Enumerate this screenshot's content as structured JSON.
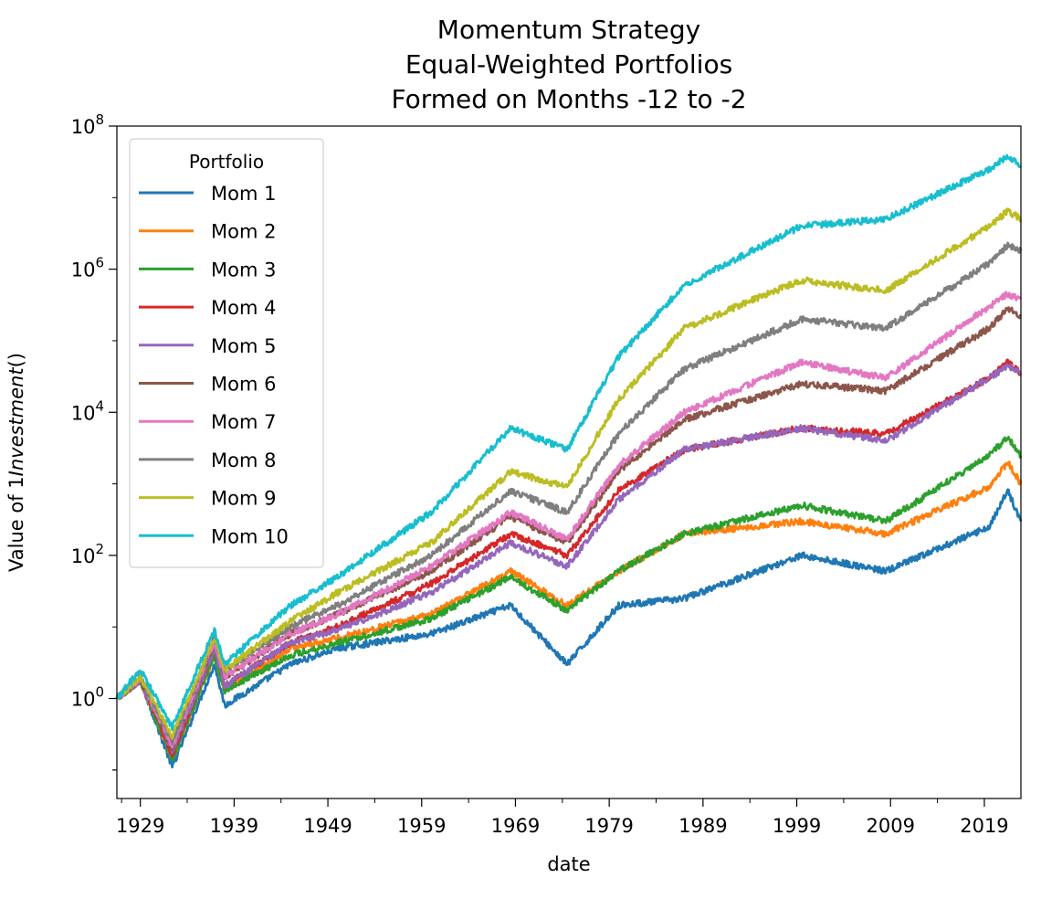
{
  "chart_data": {
    "type": "line",
    "title": [
      "Momentum Strategy",
      "Equal-Weighted Portfolios",
      "Formed on Months -12 to -2"
    ],
    "xlabel": "date",
    "ylabel_prefix": "Value of 1",
    "ylabel_italic": "Investment",
    "ylabel_suffix": "()",
    "yscale": "log",
    "ylim": [
      0.04,
      100000000
    ],
    "xlim": [
      1926.5,
      2022.9
    ],
    "x_ticks": [
      1929,
      1939,
      1949,
      1959,
      1969,
      1979,
      1989,
      1999,
      2009,
      2019
    ],
    "y_ticks": [
      {
        "base": "10",
        "exp": "0",
        "value": 1
      },
      {
        "base": "10",
        "exp": "2",
        "value": 100
      },
      {
        "base": "10",
        "exp": "4",
        "value": 10000
      },
      {
        "base": "10",
        "exp": "6",
        "value": 1000000
      },
      {
        "base": "10",
        "exp": "8",
        "value": 100000000
      }
    ],
    "grid": false,
    "legend": {
      "title": "Portfolio",
      "placement": "upper-left"
    },
    "x": [
      1926.5,
      1929,
      1932.4,
      1936.9,
      1938,
      1945,
      1950,
      1960,
      1968.5,
      1974.5,
      1980,
      1987,
      1999.5,
      2008.5,
      2019.5,
      2021.5,
      2022.9
    ],
    "series": [
      {
        "name": "Mom 1",
        "color": "#1f77b4",
        "values": [
          1,
          1.8,
          0.11,
          3,
          0.8,
          3,
          5,
          8,
          20,
          3,
          20,
          25,
          100,
          60,
          250,
          800,
          300
        ]
      },
      {
        "name": "Mom 2",
        "color": "#ff7f0e",
        "values": [
          1,
          1.8,
          0.14,
          4,
          1.3,
          5,
          7,
          15,
          60,
          20,
          60,
          200,
          300,
          200,
          900,
          2000,
          1000
        ]
      },
      {
        "name": "Mom 3",
        "color": "#2ca02c",
        "values": [
          1,
          1.8,
          0.14,
          4,
          1.3,
          4,
          6,
          13,
          50,
          17,
          60,
          200,
          500,
          300,
          2500,
          4500,
          2500
        ]
      },
      {
        "name": "Mom 4",
        "color": "#d62728",
        "values": [
          1,
          1.8,
          0.16,
          5,
          1.5,
          6,
          10,
          40,
          200,
          100,
          800,
          3000,
          6000,
          5000,
          30000,
          50000,
          35000
        ]
      },
      {
        "name": "Mom 5",
        "color": "#9467bd",
        "values": [
          1,
          1.8,
          0.18,
          5,
          1.5,
          6,
          9,
          30,
          150,
          70,
          600,
          3000,
          6000,
          4000,
          30000,
          45000,
          35000
        ]
      },
      {
        "name": "Mom 6",
        "color": "#8c564b",
        "values": [
          1,
          1.9,
          0.2,
          6,
          2,
          8,
          15,
          60,
          350,
          150,
          1500,
          8000,
          25000,
          20000,
          150000,
          280000,
          220000
        ]
      },
      {
        "name": "Mom 7",
        "color": "#e377c2",
        "values": [
          1,
          1.9,
          0.22,
          6,
          2,
          8,
          15,
          70,
          400,
          170,
          1800,
          10000,
          50000,
          30000,
          300000,
          450000,
          380000
        ]
      },
      {
        "name": "Mom 8",
        "color": "#7f7f7f",
        "values": [
          1,
          2,
          0.25,
          7,
          2.5,
          10,
          20,
          100,
          800,
          400,
          5000,
          40000,
          200000,
          150000,
          1200000,
          2200000,
          1800000
        ]
      },
      {
        "name": "Mom 9",
        "color": "#bcbd22",
        "values": [
          1,
          2,
          0.3,
          7,
          2.5,
          12,
          30,
          150,
          1500,
          900,
          15000,
          150000,
          700000,
          500000,
          4000000,
          6500000,
          5000000
        ]
      },
      {
        "name": "Mom 10",
        "color": "#17becf",
        "values": [
          1,
          2.5,
          0.4,
          9,
          3,
          20,
          50,
          400,
          6000,
          3000,
          60000,
          600000,
          4000000,
          5000000,
          25000000,
          38000000,
          28000000
        ]
      }
    ]
  }
}
